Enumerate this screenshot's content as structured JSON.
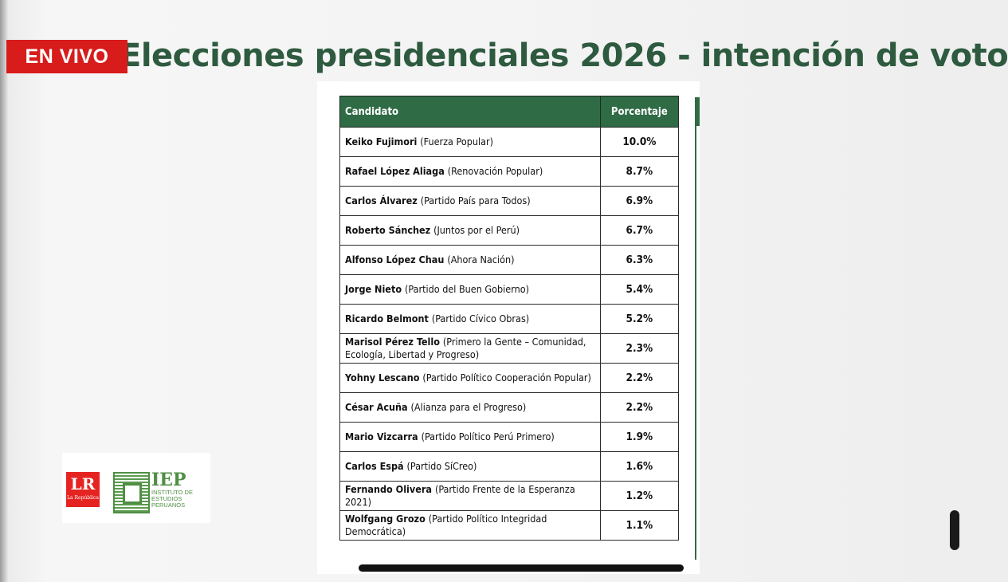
{
  "badge": {
    "label": "EN VIVO",
    "color": "#d81c1c"
  },
  "headline": {
    "title": "Elecciones presidenciales 2026 - intención de voto",
    "color": "#2e5a3f"
  },
  "table": {
    "headers": {
      "candidate": "Candidato",
      "percentage": "Porcentaje"
    },
    "header_color": "#2f6b45",
    "rows": [
      {
        "name": "Keiko Fujimori",
        "party": "(Fuerza Popular)",
        "pct": "10.0%"
      },
      {
        "name": "Rafael López Aliaga",
        "party": "(Renovación Popular)",
        "pct": "8.7%"
      },
      {
        "name": "Carlos Álvarez",
        "party": "(Partido País para Todos)",
        "pct": "6.9%"
      },
      {
        "name": "Roberto Sánchez",
        "party": "(Juntos por el Perú)",
        "pct": "6.7%"
      },
      {
        "name": "Alfonso López Chau",
        "party": "(Ahora Nación)",
        "pct": "6.3%"
      },
      {
        "name": "Jorge Nieto",
        "party": "(Partido del Buen Gobierno)",
        "pct": "5.4%"
      },
      {
        "name": "Ricardo Belmont",
        "party": "(Partido Cívico Obras)",
        "pct": "5.2%"
      },
      {
        "name": "Marisol Pérez Tello",
        "party": "(Primero la Gente – Comunidad, Ecología, Libertad y Progreso)",
        "pct": "2.3%"
      },
      {
        "name": "Yohny Lescano",
        "party": "(Partido Político Cooperación Popular)",
        "pct": "2.2%"
      },
      {
        "name": "César Acuña",
        "party": "(Alianza para el Progreso)",
        "pct": "2.2%"
      },
      {
        "name": "Mario Vizcarra",
        "party": "(Partido Político Perú Primero)",
        "pct": "1.9%"
      },
      {
        "name": "Carlos Espá",
        "party": "(Partido SíCreo)",
        "pct": "1.6%"
      },
      {
        "name": "Fernando Olivera",
        "party": "(Partido Frente de la Esperanza 2021)",
        "pct": "1.2%"
      },
      {
        "name": "Wolfgang Grozo",
        "party": "(Partido Político Integridad Democrática)",
        "pct": "1.1%"
      }
    ]
  },
  "logos": {
    "lr": {
      "big": "LR",
      "small": "La República",
      "color": "#e52421"
    },
    "iep": {
      "big": "IEP",
      "small": "INSTITUTO DE ESTUDIOS PERUANOS",
      "color": "#4f8f44"
    }
  }
}
